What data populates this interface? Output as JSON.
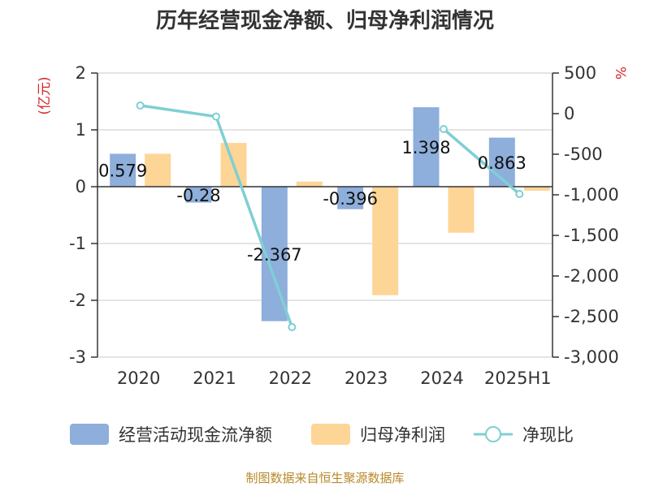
{
  "chart_data": {
    "type": "bar",
    "title": "历年经营现金净额、归母净利润情况",
    "categories": [
      "2020",
      "2021",
      "2022",
      "2023",
      "2024",
      "2025H1"
    ],
    "left_axis": {
      "unit_label": "(亿元)",
      "range": [
        -3,
        2
      ],
      "ticks": [
        "2",
        "1",
        "0",
        "-1",
        "-2",
        "-3"
      ]
    },
    "right_axis": {
      "unit_label": "%",
      "range": [
        -3000,
        500
      ],
      "ticks": [
        "500",
        "0",
        "-500",
        "-1,000",
        "-1,500",
        "-2,000",
        "-2,500",
        "-3,000"
      ]
    },
    "series": [
      {
        "name": "经营活动现金流净额",
        "type": "bar",
        "axis": "left",
        "color": "#8eaedb",
        "values": [
          0.579,
          -0.28,
          -2.367,
          -0.396,
          1.398,
          0.863
        ],
        "labels": [
          "0.579",
          "-0.28",
          "-2.367",
          "-0.396",
          "1.398",
          "0.863"
        ]
      },
      {
        "name": "归母净利润",
        "type": "bar",
        "axis": "left",
        "color": "#fdd596",
        "values": [
          0.58,
          0.77,
          0.09,
          -1.91,
          -0.81,
          -0.07
        ]
      },
      {
        "name": "净现比",
        "type": "line",
        "axis": "right",
        "color": "#7fcfd3",
        "values": [
          100,
          -36,
          -2630,
          null,
          -190,
          -990
        ]
      }
    ],
    "grid": true,
    "legend_position": "bottom"
  },
  "footer": {
    "source": "制图数据来自恒生聚源数据库"
  }
}
